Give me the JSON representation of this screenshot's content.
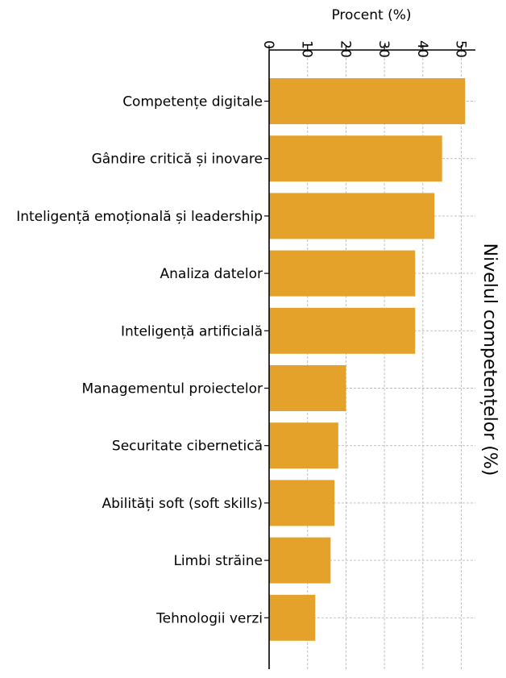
{
  "chart_data": {
    "type": "bar",
    "orientation": "horizontal",
    "title": "Nivelul competențelor (%)",
    "xlabel": "Procent (%)",
    "ylabel": "",
    "xlim": [
      0,
      53
    ],
    "xticks": [
      0,
      10,
      20,
      30,
      40,
      50
    ],
    "grid": true,
    "axis_position": "top",
    "bar_color": "#E5A22A",
    "categories": [
      "Competențe digitale",
      "Gândire critică și inovare",
      "Inteligență emoțională și leadership",
      "Analiza datelor",
      "Inteligență artificială",
      "Managementul proiectelor",
      "Securitate cibernetică",
      "Abilități soft (soft skills)",
      "Limbi străine",
      "Tehnologii verzi"
    ],
    "values": [
      51,
      45,
      43,
      38,
      38,
      20,
      18,
      17,
      16,
      12
    ]
  }
}
